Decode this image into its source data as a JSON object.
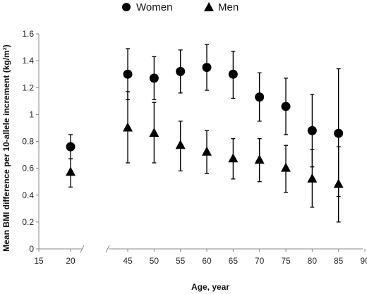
{
  "chart_data": {
    "type": "scatter",
    "xlabel": "Age, year",
    "ylabel": "Mean BMI difference per 10-allele increment (kg/m²)",
    "xlim": [
      15,
      90
    ],
    "ylim": [
      0,
      1.6
    ],
    "x_ticks": [
      15,
      20,
      45,
      50,
      55,
      60,
      65,
      70,
      75,
      80,
      85,
      90
    ],
    "y_ticks": [
      0,
      0.2,
      0.4,
      0.6,
      0.8,
      1,
      1.2,
      1.4,
      1.6
    ],
    "x_tick_labels": [
      "15",
      "20",
      "45",
      "50",
      "55",
      "60",
      "65",
      "70",
      "75",
      "80",
      "85",
      "90"
    ],
    "y_tick_labels": [
      "0",
      "0.2",
      "0.4",
      "0.6",
      "0.8",
      "1",
      "1.2",
      "1.4",
      "1.6"
    ],
    "axis_break_between": [
      20,
      45
    ],
    "grid": false,
    "legend_position": "top-center",
    "error_bars": true,
    "series": [
      {
        "name": "Women",
        "marker": "circle",
        "color": "#000000",
        "x": [
          20,
          45,
          50,
          55,
          60,
          65,
          70,
          75,
          80,
          85
        ],
        "y": [
          0.76,
          1.3,
          1.27,
          1.32,
          1.35,
          1.3,
          1.13,
          1.06,
          0.88,
          0.86
        ],
        "lower": [
          0.67,
          1.11,
          1.11,
          1.16,
          1.18,
          1.12,
          0.95,
          0.85,
          0.61,
          0.39
        ],
        "upper": [
          0.85,
          1.49,
          1.43,
          1.48,
          1.52,
          1.47,
          1.31,
          1.27,
          1.15,
          1.34
        ]
      },
      {
        "name": "Men",
        "marker": "triangle",
        "color": "#000000",
        "x": [
          20,
          45,
          50,
          55,
          60,
          65,
          70,
          75,
          80,
          85
        ],
        "y": [
          0.57,
          0.9,
          0.86,
          0.77,
          0.72,
          0.67,
          0.66,
          0.6,
          0.52,
          0.48
        ],
        "lower": [
          0.46,
          0.64,
          0.64,
          0.58,
          0.56,
          0.52,
          0.5,
          0.42,
          0.31,
          0.2
        ],
        "upper": [
          0.67,
          1.17,
          1.09,
          0.95,
          0.88,
          0.82,
          0.82,
          0.77,
          0.74,
          0.76
        ]
      }
    ]
  }
}
